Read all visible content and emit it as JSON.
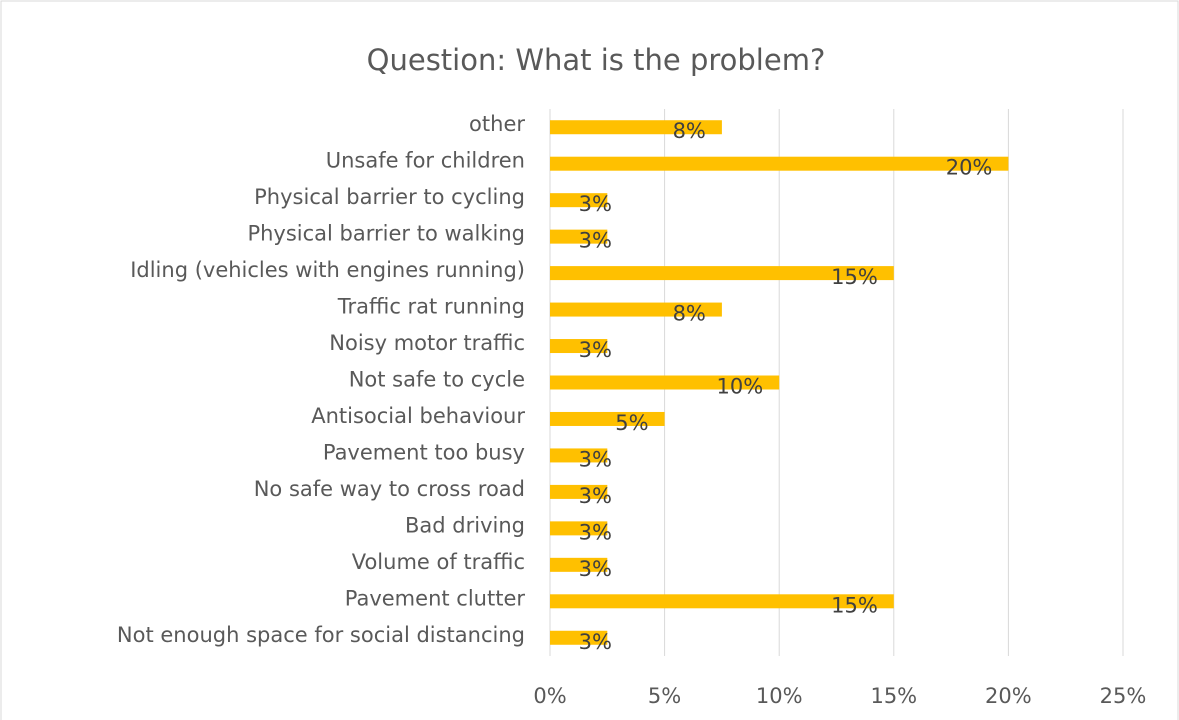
{
  "chart_data": {
    "type": "bar",
    "orientation": "horizontal",
    "title": "Question: What is the problem?",
    "categories": [
      "other",
      "Unsafe for children",
      "Physical barrier to cycling",
      "Physical barrier to walking",
      "Idling (vehicles with engines running)",
      "Traffic rat running",
      "Noisy motor traffic",
      "Not safe to cycle",
      "Antisocial behaviour",
      "Pavement too busy",
      "No safe way to cross road",
      "Bad driving",
      "Volume of traffic",
      "Pavement clutter",
      "Not enough space for social distancing"
    ],
    "values": [
      7.5,
      20,
      2.5,
      2.5,
      15,
      7.5,
      2.5,
      10,
      5,
      2.5,
      2.5,
      2.5,
      2.5,
      15,
      2.5
    ],
    "value_labels": [
      "8%",
      "20%",
      "3%",
      "3%",
      "15%",
      "8%",
      "3%",
      "10%",
      "5%",
      "3%",
      "3%",
      "3%",
      "3%",
      "15%",
      "3%"
    ],
    "color": "#ffc000",
    "xlim": [
      0,
      25
    ],
    "xticks": [
      {
        "value": 0,
        "label": "0%"
      },
      {
        "value": 5,
        "label": "5%"
      },
      {
        "value": 10,
        "label": "10%"
      },
      {
        "value": 15,
        "label": "15%"
      },
      {
        "value": 20,
        "label": "20%"
      },
      {
        "value": 25,
        "label": "25%"
      }
    ],
    "grid": true
  }
}
